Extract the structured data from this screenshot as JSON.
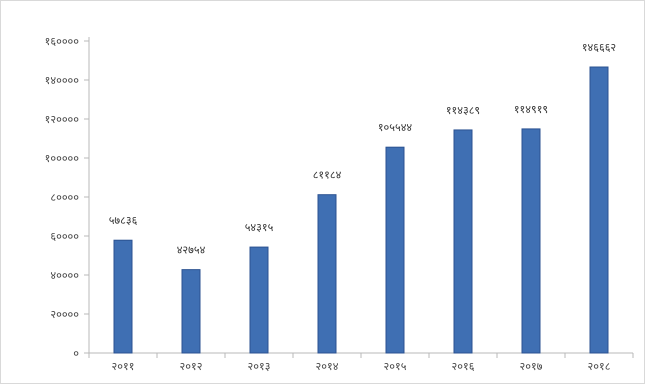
{
  "chart_data": {
    "type": "bar",
    "categories": [
      "२०११",
      "२०१२",
      "२०१३",
      "२०१४",
      "२०१५",
      "२०१६",
      "२०१७",
      "२०१८"
    ],
    "values": [
      57836,
      42754,
      54315,
      81184,
      105544,
      114389,
      114919,
      146662
    ],
    "data_labels": [
      "५७८३६",
      "४२७५४",
      "५४३१५",
      "८११८४",
      "१०५५४४",
      "११४३८९",
      "११४९१९",
      "१४६६६२"
    ],
    "y_ticks": [
      0,
      20000,
      40000,
      60000,
      80000,
      100000,
      120000,
      140000,
      160000
    ],
    "y_tick_labels": [
      "०",
      "२००००",
      "४००००",
      "६००००",
      "८००००",
      "१०००००",
      "१२००००",
      "१४००००",
      "१६००००"
    ],
    "ylim": [
      0,
      160000
    ],
    "title": "",
    "xlabel": "",
    "ylabel": "",
    "grid": false,
    "colors": {
      "bar": "#3f6fb3",
      "bar_edge": "#2b5291",
      "axis": "#b8b8b8"
    }
  }
}
